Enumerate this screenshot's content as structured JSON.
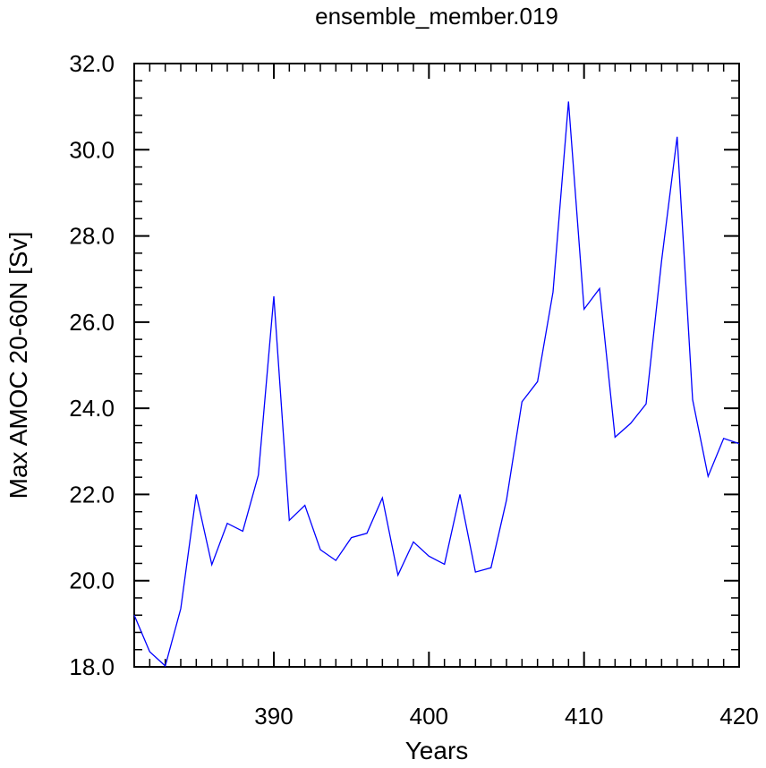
{
  "chart_data": {
    "type": "line",
    "title": "ensemble_member.019",
    "xlabel": "Years",
    "ylabel": "Max AMOC 20-60N [Sv]",
    "xlim": [
      381,
      420
    ],
    "ylim": [
      18.0,
      32.0
    ],
    "x_ticks": [
      390,
      400,
      410,
      420
    ],
    "x_tick_labels": [
      "390",
      "400",
      "410",
      "420"
    ],
    "y_ticks": [
      18.0,
      20.0,
      22.0,
      24.0,
      26.0,
      28.0,
      30.0,
      32.0
    ],
    "y_tick_labels": [
      "18.0",
      "20.0",
      "22.0",
      "24.0",
      "26.0",
      "28.0",
      "30.0",
      "32.0"
    ],
    "grid": false,
    "series": [
      {
        "color": "#0000ff",
        "x": [
          381,
          382,
          383,
          384,
          385,
          386,
          387,
          388,
          389,
          390,
          391,
          392,
          393,
          394,
          395,
          396,
          397,
          398,
          399,
          400,
          401,
          402,
          403,
          404,
          405,
          406,
          407,
          408,
          409,
          410,
          411,
          412,
          413,
          414,
          415,
          416,
          417,
          418,
          419,
          420
        ],
        "y": [
          19.2,
          18.35,
          18.02,
          19.35,
          22.0,
          20.37,
          21.33,
          21.15,
          22.45,
          26.6,
          21.4,
          21.75,
          20.72,
          20.47,
          21.0,
          21.1,
          21.92,
          20.13,
          20.9,
          20.57,
          20.38,
          22.0,
          20.2,
          20.3,
          21.87,
          24.15,
          24.62,
          26.7,
          31.12,
          26.3,
          26.78,
          23.33,
          23.65,
          24.1,
          27.42,
          30.3,
          24.2,
          22.42,
          23.3,
          23.18
        ]
      }
    ]
  }
}
